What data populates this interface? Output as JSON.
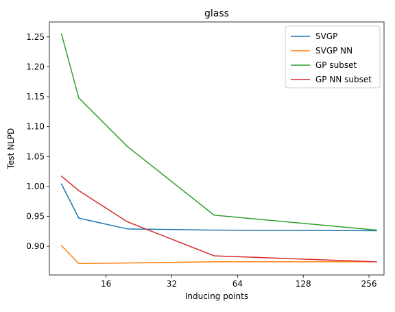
{
  "chart_data": {
    "type": "line",
    "title": "glass",
    "xlabel": "Inducing points",
    "ylabel": "Test NLPD",
    "x_scale": "log2",
    "xlim": [
      8.8,
      300
    ],
    "ylim": [
      0.852,
      1.275
    ],
    "x_ticks": [
      16,
      32,
      64,
      128,
      256
    ],
    "y_ticks": [
      0.9,
      0.95,
      1.0,
      1.05,
      1.1,
      1.15,
      1.2,
      1.25
    ],
    "x_tick_labels": [
      "16",
      "32",
      "64",
      "128",
      "256"
    ],
    "y_tick_labels": [
      "0.90",
      "0.95",
      "1.00",
      "1.05",
      "1.10",
      "1.15",
      "1.20",
      "1.25"
    ],
    "legend_position": "top-right",
    "grid": false,
    "x": [
      10,
      12,
      20,
      50,
      277
    ],
    "series": [
      {
        "name": "SVGP",
        "color": "#1f77b4",
        "values": [
          1.004,
          0.947,
          0.929,
          0.927,
          0.926
        ]
      },
      {
        "name": "SVGP NN",
        "color": "#ff7f0e",
        "values": [
          0.901,
          0.871,
          0.872,
          0.874,
          0.874
        ]
      },
      {
        "name": "GP subset",
        "color": "#2ca02c",
        "values": [
          1.255,
          1.148,
          1.067,
          0.952,
          0.927
        ]
      },
      {
        "name": "GP NN subset",
        "color": "#d62728",
        "values": [
          1.017,
          0.993,
          0.941,
          0.884,
          0.874
        ]
      }
    ]
  }
}
